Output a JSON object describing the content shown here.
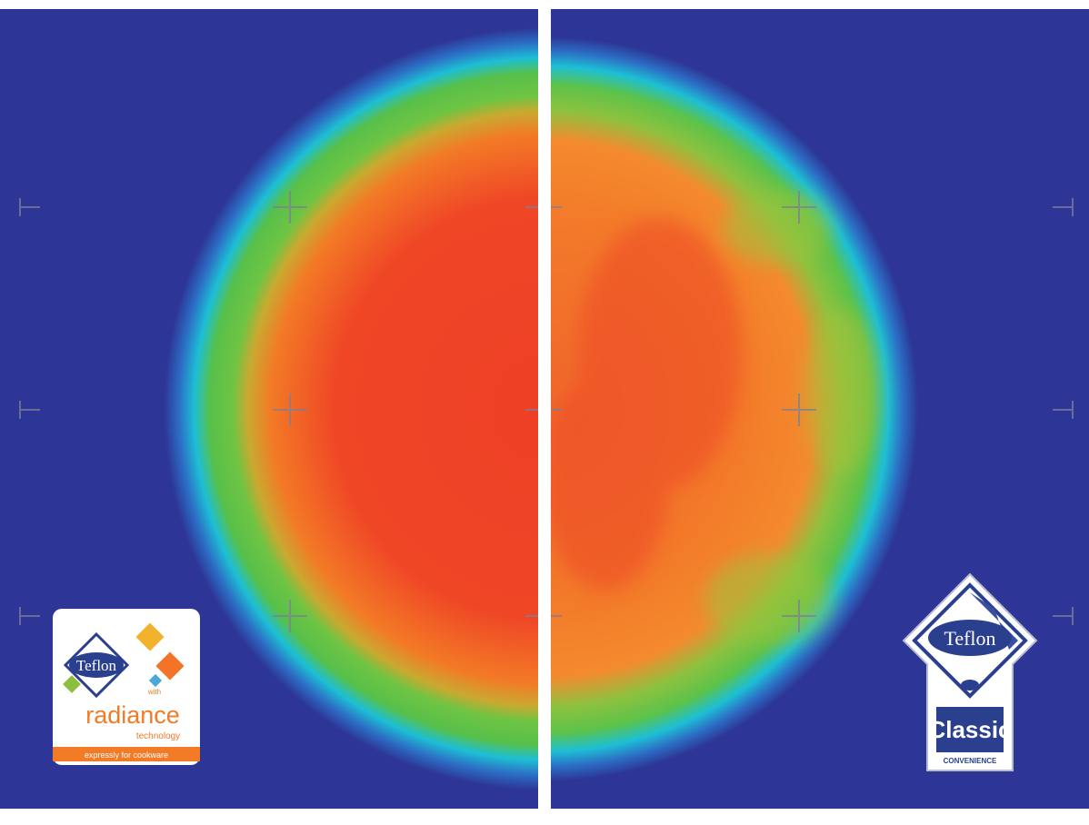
{
  "image": {
    "colors": {
      "background_blue": "#2d3596",
      "ring_cyan": "#1ec0d6",
      "ring_green": "#5fc544",
      "hot_orange": "#f37a26",
      "hot_red": "#ee3f25"
    },
    "left_logo": {
      "brand": "Teflon",
      "with": "with",
      "product": "radiance",
      "sub": "technology",
      "tagline": "expressly for cookware"
    },
    "right_logo": {
      "brand": "Teflon",
      "tier": "Classic",
      "sub": "CONVENIENCE"
    }
  }
}
